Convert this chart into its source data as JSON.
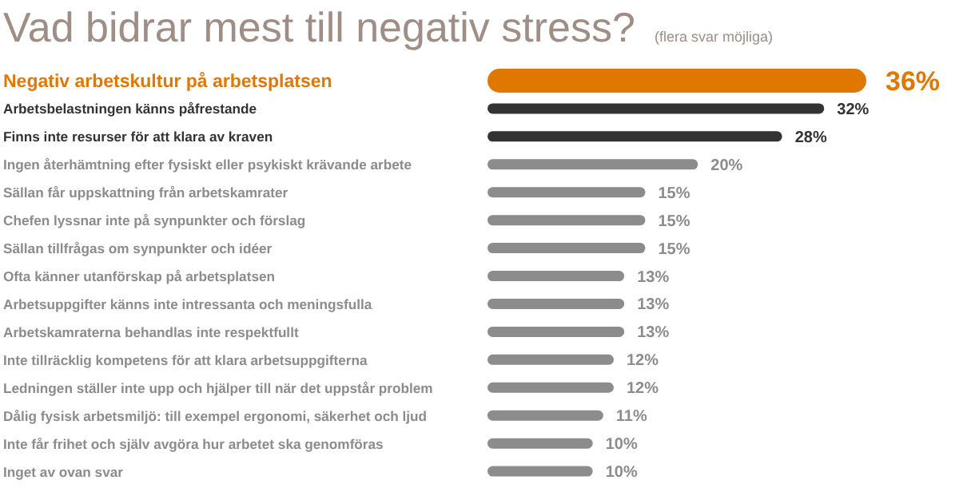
{
  "chart_data": {
    "type": "bar",
    "orientation": "horizontal",
    "tick_labels": false,
    "title": "Vad bidrar mest till negativ stress?",
    "subtitle": "(flera svar möjliga)",
    "categories": [
      "Negativ arbetskultur på arbetsplatsen",
      "Arbetsbelastningen känns påfrestande",
      "Finns inte resurser för att klara av kraven",
      "Ingen återhämtning efter fysiskt eller psykiskt krävande arbete",
      "Sällan får uppskattning från arbetskamrater",
      "Chefen lyssnar inte på synpunkter och förslag",
      "Sällan tillfrågas om synpunkter och idéer",
      "Ofta känner utanförskap på arbetsplatsen",
      "Arbetsuppgifter känns inte intressanta och meningsfulla",
      "Arbetskamraterna behandlas inte respektfullt",
      "Inte tillräcklig kompetens för att klara arbetsuppgifterna",
      "Ledningen ställer inte upp och hjälper till när det uppstår problem",
      "Dålig fysisk arbetsmiljö: till exempel ergonomi, säkerhet och ljud",
      "Inte får frihet och själv avgöra hur arbetet ska genomföras",
      "Inget av ovan svar"
    ],
    "values": [
      36,
      32,
      28,
      20,
      15,
      15,
      15,
      13,
      13,
      13,
      12,
      12,
      11,
      10,
      10
    ],
    "value_labels": [
      "36%",
      "32%",
      "28%",
      "20%",
      "15%",
      "15%",
      "15%",
      "13%",
      "13%",
      "13%",
      "12%",
      "12%",
      "11%",
      "10%",
      "10%"
    ],
    "colors": [
      "#e07800",
      "#333333",
      "#333333",
      "#8c8c8c",
      "#8c8c8c",
      "#8c8c8c",
      "#8c8c8c",
      "#8c8c8c",
      "#8c8c8c",
      "#8c8c8c",
      "#8c8c8c",
      "#8c8c8c",
      "#8c8c8c",
      "#8c8c8c",
      "#8c8c8c"
    ],
    "grid": false,
    "legend": false
  }
}
